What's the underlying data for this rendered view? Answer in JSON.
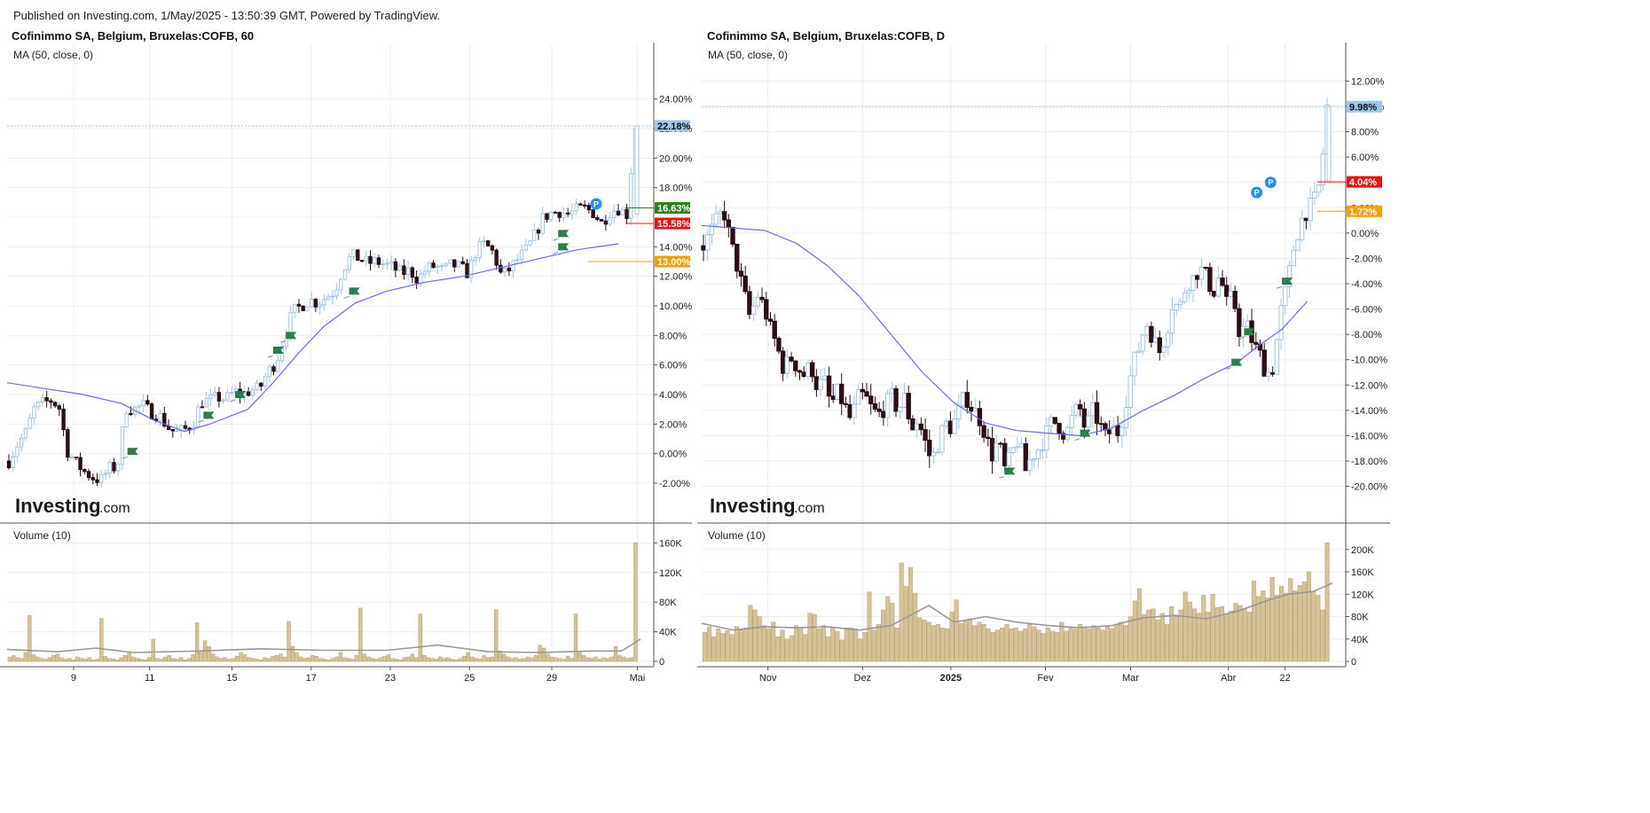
{
  "header": {
    "published": "Published on Investing.com, 1/May/2025 - 13:50:39 GMT, Powered by TradingView."
  },
  "colors": {
    "up_candle": "#9fc6e8",
    "down_candle": "#2b0f14",
    "ma_line": "#6b6bf0",
    "volume_bar": "#d5c499",
    "volume_ma": "#999999",
    "last_price": "#9fc6e8",
    "green_badge": "#2e7d1f",
    "red_badge": "#ee1111",
    "orange_badge": "#f7a00a",
    "flag": "#2e7d4f",
    "p_marker": "#1e90ff"
  },
  "logo": {
    "main": "Investing",
    "suffix": ".com"
  },
  "chart_data": [
    {
      "type": "candlestick",
      "title": "Cofinimmo SA, Belgium, Bruxelas:COFB, 60",
      "indicator_label": "MA (50, close, 0)",
      "volume_label": "Volume (10)",
      "y_unit": "%",
      "ylim": [
        -3.5,
        26.5
      ],
      "y_ticks": [
        "24.00%",
        "22.00%",
        "20.00%",
        "18.00%",
        "16.00%",
        "14.00%",
        "12.00%",
        "10.00%",
        "8.00%",
        "6.00%",
        "4.00%",
        "2.00%",
        "0.00%",
        "-2.00%"
      ],
      "y_tick_values": [
        24,
        22,
        20,
        18,
        16,
        14,
        12,
        10,
        8,
        6,
        4,
        2,
        0,
        -2
      ],
      "x_ticks": [
        "9",
        "11",
        "15",
        "17",
        "23",
        "25",
        "29",
        "Mai"
      ],
      "x_tick_pos": [
        0.105,
        0.225,
        0.355,
        0.48,
        0.605,
        0.73,
        0.86,
        0.995
      ],
      "close_path": [
        -0.5,
        0.6,
        1.4,
        3.0,
        3.4,
        3.6,
        3.2,
        0.2,
        -0.6,
        -1.2,
        -1.6,
        -1.8,
        -1.0,
        -0.9,
        3.1,
        3.0,
        3.3,
        2.8,
        2.6,
        1.8,
        1.4,
        1.6,
        2.0,
        3.5,
        3.6,
        3.8,
        3.7,
        4.2,
        4.0,
        4.3,
        4.4,
        5.5,
        6.2,
        8.0,
        9.6,
        10.0,
        10.4,
        10.2,
        10.6,
        11.0,
        12.5,
        13.4,
        13.2,
        12.9,
        13.0,
        12.8,
        12.6,
        12.2,
        12.4,
        11.8,
        12.5,
        12.7,
        12.4,
        12.8,
        12.6,
        12.2,
        13.8,
        14.2,
        13.6,
        12.0,
        12.5,
        13.2,
        13.8,
        14.8,
        16.0,
        16.3,
        16.4,
        16.2,
        16.5,
        16.6,
        16.3,
        15.6,
        16.4,
        16.6,
        16.2,
        22.18
      ],
      "ma_path": [
        [
          0.0,
          4.8
        ],
        [
          0.06,
          4.4
        ],
        [
          0.12,
          4.0
        ],
        [
          0.18,
          3.4
        ],
        [
          0.23,
          2.3
        ],
        [
          0.28,
          1.5
        ],
        [
          0.32,
          2.0
        ],
        [
          0.38,
          3.0
        ],
        [
          0.42,
          4.8
        ],
        [
          0.46,
          6.8
        ],
        [
          0.5,
          8.6
        ],
        [
          0.55,
          10.2
        ],
        [
          0.6,
          11.0
        ],
        [
          0.66,
          11.6
        ],
        [
          0.72,
          12.0
        ],
        [
          0.78,
          12.6
        ],
        [
          0.84,
          13.2
        ],
        [
          0.9,
          13.8
        ],
        [
          0.965,
          14.2
        ]
      ],
      "flags": [
        [
          0.19,
          0.15
        ],
        [
          0.31,
          2.6
        ],
        [
          0.36,
          4.0
        ],
        [
          0.42,
          7.0
        ],
        [
          0.54,
          11.0
        ],
        [
          0.44,
          8.0
        ],
        [
          0.87,
          14.0
        ],
        [
          0.87,
          14.9
        ]
      ],
      "p_markers": [
        [
          0.93,
          16.9
        ]
      ],
      "volume": {
        "ylim": [
          0,
          170000
        ],
        "y_ticks": [
          "160K",
          "120K",
          "80K",
          "40K",
          "0"
        ],
        "y_tick_values": [
          160000,
          120000,
          80000,
          40000,
          0
        ],
        "bars": [
          6000,
          8000,
          5000,
          4000,
          12000,
          62000,
          9000,
          6000,
          4000,
          3000,
          5000,
          8000,
          10000,
          5000,
          3000,
          4000,
          2000,
          6000,
          4000,
          3000,
          5000,
          2000,
          3000,
          58000,
          7000,
          4000,
          3000,
          2000,
          5000,
          8000,
          12000,
          6000,
          4000,
          3000,
          2000,
          5000,
          30000,
          4000,
          3000,
          6000,
          8000,
          4000,
          3000,
          5000,
          2000,
          4000,
          9000,
          52000,
          14000,
          28000,
          20000,
          10000,
          6000,
          4000,
          5000,
          3000,
          4000,
          7000,
          12000,
          9000,
          5000,
          4000,
          3000,
          2000,
          5000,
          4000,
          7000,
          8000,
          10000,
          6000,
          54000,
          20000,
          12000,
          6000,
          4000,
          5000,
          8000,
          7000,
          4000,
          3000,
          2000,
          4000,
          6000,
          12000,
          5000,
          4000,
          3000,
          8000,
          72000,
          10000,
          6000,
          4000,
          3000,
          5000,
          7000,
          9000,
          4000,
          3000,
          2000,
          5000,
          6000,
          10000,
          5000,
          64000,
          8000,
          5000,
          4000,
          3000,
          6000,
          4000,
          5000,
          3000,
          2000,
          4000,
          7000,
          12000,
          6000,
          4000,
          3000,
          8000,
          5000,
          6000,
          70000,
          14000,
          10000,
          6000,
          4000,
          5000,
          3000,
          4000,
          6000,
          4000,
          8000,
          22000,
          18000,
          10000,
          6000,
          5000,
          4000,
          3000,
          7000,
          4000,
          64000,
          12000,
          8000,
          5000,
          4000,
          6000,
          3000,
          5000,
          4000,
          6000,
          20000,
          8000,
          6000,
          4000,
          5000,
          160000
        ],
        "ma_path": [
          [
            0.0,
            16000
          ],
          [
            0.08,
            13000
          ],
          [
            0.14,
            18000
          ],
          [
            0.2,
            12000
          ],
          [
            0.3,
            14000
          ],
          [
            0.4,
            17000
          ],
          [
            0.5,
            15000
          ],
          [
            0.6,
            15000
          ],
          [
            0.68,
            22000
          ],
          [
            0.76,
            13000
          ],
          [
            0.84,
            12000
          ],
          [
            0.92,
            14000
          ],
          [
            0.97,
            14000
          ],
          [
            1.0,
            30000
          ]
        ]
      },
      "badges": [
        {
          "text": "22.18%",
          "value": 22.18,
          "kind": "last"
        },
        {
          "text": "16.63%",
          "value": 16.63,
          "kind": "green"
        },
        {
          "text": "15.58%",
          "value": 15.58,
          "kind": "red"
        },
        {
          "text": "13.00%",
          "value": 13.0,
          "kind": "orange"
        }
      ],
      "hidden_tick": "16.00%"
    },
    {
      "type": "candlestick",
      "title": "Cofinimmo SA, Belgium, Bruxelas:COFB, D",
      "indicator_label": "MA (50, close, 0)",
      "volume_label": "Volume (10)",
      "y_unit": "%",
      "ylim": [
        -21.5,
        13.5
      ],
      "y_ticks": [
        "12.00%",
        "10.00%",
        "8.00%",
        "6.00%",
        "4.00%",
        "2.00%",
        "0.00%",
        "-2.00%",
        "-4.00%",
        "-6.00%",
        "-8.00%",
        "-10.00%",
        "-12.00%",
        "-14.00%",
        "-16.00%",
        "-18.00%",
        "-20.00%"
      ],
      "y_tick_values": [
        12,
        10,
        8,
        6,
        4,
        2,
        0,
        -2,
        -4,
        -6,
        -8,
        -10,
        -12,
        -14,
        -16,
        -18,
        -20
      ],
      "x_ticks": [
        "Nov",
        "Dez",
        "2025",
        "Fev",
        "Mar",
        "Abr",
        "22"
      ],
      "x_tick_bold": [
        false,
        false,
        true,
        false,
        false,
        false,
        false
      ],
      "x_tick_pos": [
        0.105,
        0.255,
        0.395,
        0.545,
        0.68,
        0.835,
        0.925
      ],
      "close_path": [
        -1.0,
        0.0,
        1.0,
        1.8,
        -0.6,
        -2.6,
        -4.6,
        -6.8,
        -4.8,
        -5.8,
        -7.6,
        -9.0,
        -10.8,
        -9.8,
        -10.6,
        -11.2,
        -10.4,
        -12.2,
        -11.6,
        -13.6,
        -12.6,
        -13.6,
        -14.8,
        -13.0,
        -12.8,
        -13.8,
        -14.4,
        -13.8,
        -12.8,
        -14.0,
        -13.0,
        -15.4,
        -14.8,
        -16.4,
        -18.0,
        -16.6,
        -15.0,
        -15.4,
        -14.2,
        -12.8,
        -13.8,
        -14.4,
        -15.8,
        -17.6,
        -16.4,
        -18.8,
        -17.4,
        -16.2,
        -18.8,
        -17.6,
        -17.0,
        -16.0,
        -14.8,
        -15.2,
        -16.0,
        -14.6,
        -13.6,
        -15.6,
        -14.0,
        -15.0,
        -16.2,
        -15.4,
        -15.8,
        -13.2,
        -10.4,
        -9.0,
        -7.0,
        -8.2,
        -9.4,
        -8.0,
        -5.4,
        -6.0,
        -4.0,
        -3.6,
        -2.8,
        -3.4,
        -4.8,
        -3.2,
        -5.6,
        -5.0,
        -8.0,
        -7.2,
        -8.8,
        -9.6,
        -11.2,
        -10.6,
        -6.4,
        -4.2,
        -1.2,
        0.8,
        1.8,
        2.4,
        4.04,
        9.98
      ],
      "ma_path": [
        [
          0.0,
          0.6
        ],
        [
          0.05,
          0.4
        ],
        [
          0.1,
          0.2
        ],
        [
          0.15,
          -0.8
        ],
        [
          0.2,
          -2.6
        ],
        [
          0.25,
          -5.0
        ],
        [
          0.3,
          -8.0
        ],
        [
          0.35,
          -11.0
        ],
        [
          0.4,
          -13.4
        ],
        [
          0.45,
          -15.0
        ],
        [
          0.5,
          -15.6
        ],
        [
          0.55,
          -15.8
        ],
        [
          0.6,
          -16.0
        ],
        [
          0.65,
          -15.4
        ],
        [
          0.7,
          -14.0
        ],
        [
          0.75,
          -12.8
        ],
        [
          0.8,
          -11.4
        ],
        [
          0.85,
          -10.2
        ],
        [
          0.88,
          -9.0
        ],
        [
          0.92,
          -7.6
        ],
        [
          0.96,
          -5.4
        ]
      ],
      "flags": [
        [
          0.48,
          -18.8
        ],
        [
          0.6,
          -15.8
        ],
        [
          0.84,
          -10.2
        ],
        [
          0.86,
          -7.8
        ],
        [
          0.92,
          -3.8
        ]
      ],
      "p_markers": [
        [
          0.88,
          3.2
        ],
        [
          0.902,
          4.0
        ]
      ],
      "volume": {
        "ylim": [
          0,
          225000
        ],
        "y_ticks": [
          "200K",
          "160K",
          "120K",
          "80K",
          "40K",
          "0"
        ],
        "y_tick_values": [
          200000,
          160000,
          120000,
          80000,
          40000,
          0
        ],
        "bars": [
          52000,
          62000,
          44000,
          58000,
          50000,
          55000,
          48000,
          62000,
          56000,
          60000,
          100000,
          92000,
          80000,
          64000,
          58000,
          70000,
          44000,
          56000,
          40000,
          46000,
          64000,
          60000,
          48000,
          86000,
          84000,
          58000,
          64000,
          44000,
          60000,
          54000,
          38000,
          60000,
          60000,
          58000,
          40000,
          52000,
          124000,
          56000,
          66000,
          92000,
          116000,
          104000,
          60000,
          176000,
          134000,
          168000,
          122000,
          78000,
          74000,
          70000,
          64000,
          66000,
          60000,
          58000,
          88000,
          110000,
          68000,
          72000,
          76000,
          64000,
          70000,
          66000,
          58000,
          52000,
          56000,
          60000,
          66000,
          58000,
          60000,
          54000,
          58000,
          66000,
          62000,
          56000,
          50000,
          60000,
          54000,
          52000,
          70000,
          54000,
          60000,
          58000,
          66000,
          62000,
          58000,
          64000,
          60000,
          56000,
          62000,
          58000,
          66000,
          70000,
          64000,
          80000,
          108000,
          130000,
          84000,
          92000,
          94000,
          74000,
          86000,
          66000,
          98000,
          80000,
          92000,
          124000,
          106000,
          94000,
          86000,
          118000,
          88000,
          120000,
          96000,
          98000,
          84000,
          90000,
          104000,
          100000,
          94000,
          88000,
          144000,
          116000,
          126000,
          114000,
          150000,
          118000,
          134000,
          122000,
          148000,
          126000,
          136000,
          142000,
          160000,
          124000,
          118000,
          92000,
          212000
        ],
        "ma_path": [
          [
            0.0,
            68000
          ],
          [
            0.05,
            56000
          ],
          [
            0.1,
            62000
          ],
          [
            0.15,
            60000
          ],
          [
            0.2,
            62000
          ],
          [
            0.25,
            56000
          ],
          [
            0.3,
            64000
          ],
          [
            0.34,
            88000
          ],
          [
            0.36,
            100000
          ],
          [
            0.4,
            70000
          ],
          [
            0.45,
            80000
          ],
          [
            0.5,
            70000
          ],
          [
            0.55,
            64000
          ],
          [
            0.6,
            60000
          ],
          [
            0.65,
            64000
          ],
          [
            0.7,
            78000
          ],
          [
            0.75,
            82000
          ],
          [
            0.8,
            76000
          ],
          [
            0.85,
            90000
          ],
          [
            0.9,
            110000
          ],
          [
            0.93,
            120000
          ],
          [
            0.97,
            125000
          ],
          [
            1.0,
            140000
          ]
        ]
      },
      "badges": [
        {
          "text": "9.98%",
          "value": 9.98,
          "kind": "last"
        },
        {
          "text": "4.04%",
          "value": 4.04,
          "kind": "red"
        },
        {
          "text": "1.72%",
          "value": 1.72,
          "kind": "orange"
        }
      ]
    }
  ]
}
